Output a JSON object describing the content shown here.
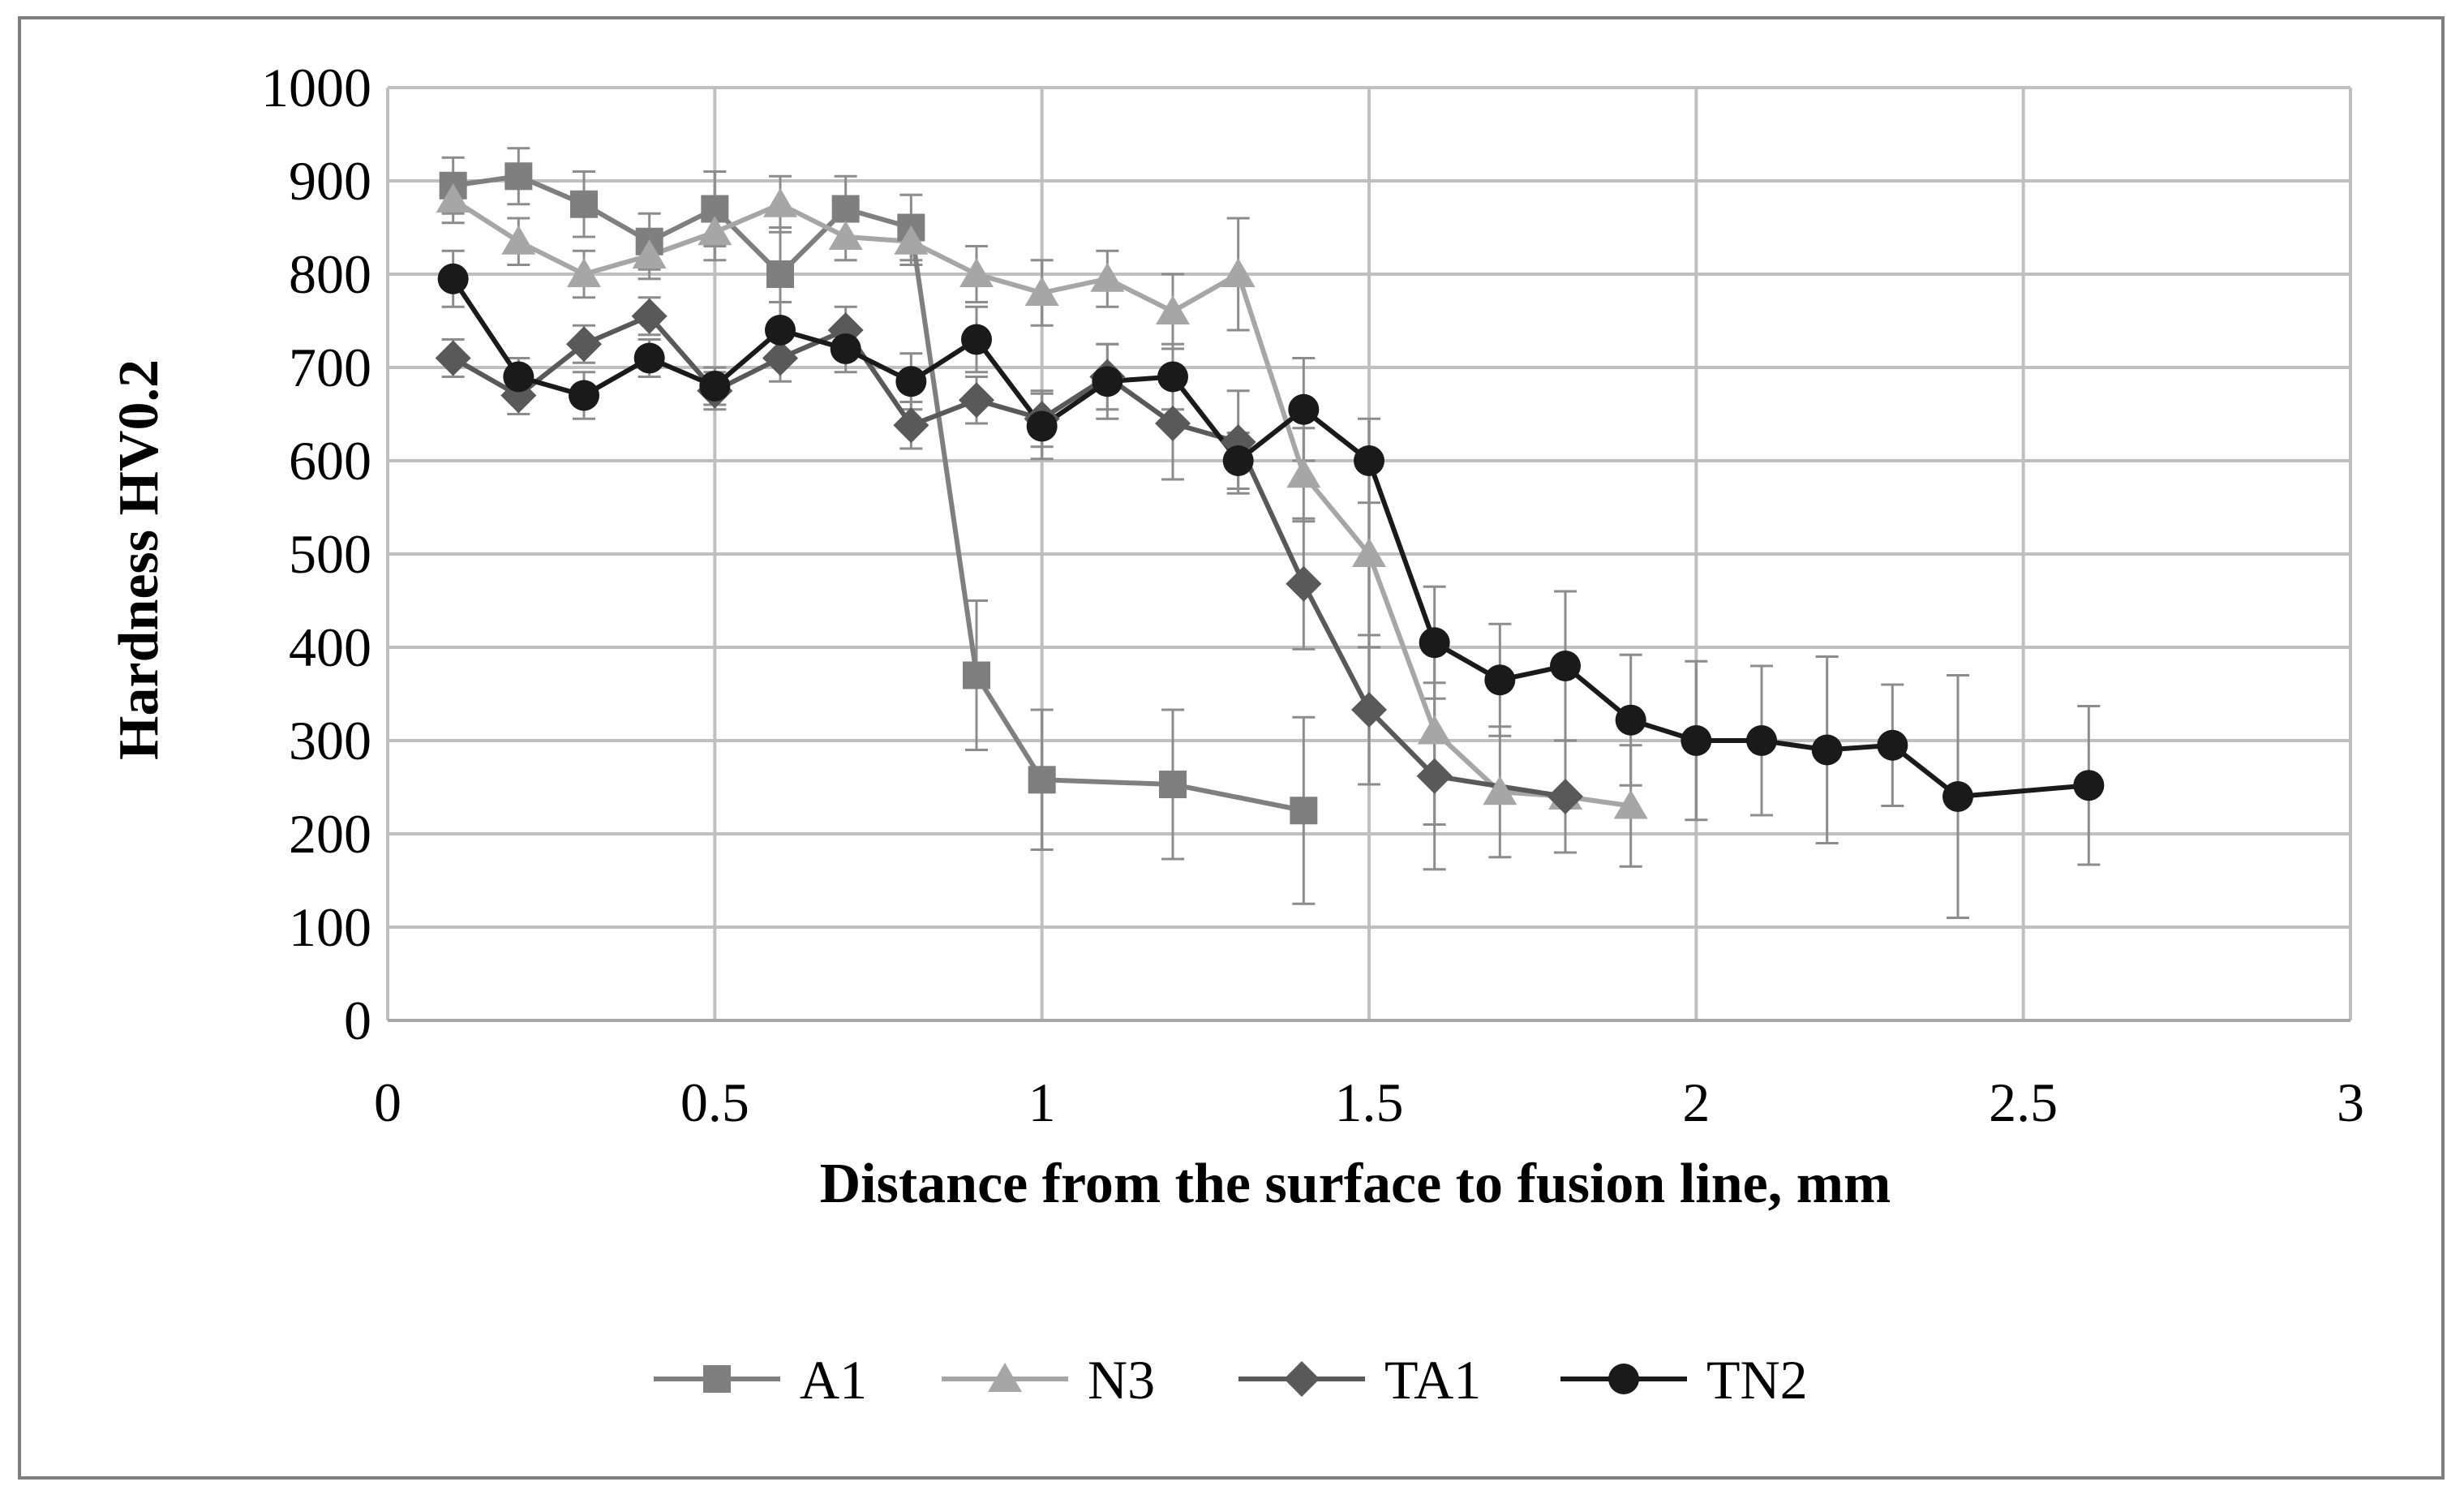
{
  "chart_data": {
    "type": "line",
    "title": "",
    "xlabel": "Distance from the surface to fusion line, mm",
    "ylabel": "Hardness HV0.2",
    "xlim": [
      0,
      3
    ],
    "ylim": [
      0,
      1000
    ],
    "xticks": [
      0,
      0.5,
      1,
      1.5,
      2,
      2.5,
      3
    ],
    "xtick_labels": [
      "0",
      "0.5",
      "1",
      "1.5",
      "2",
      "2.5",
      "3"
    ],
    "yticks": [
      0,
      100,
      200,
      300,
      400,
      500,
      600,
      700,
      800,
      900,
      1000
    ],
    "ytick_labels": [
      "0",
      "100",
      "200",
      "300",
      "400",
      "500",
      "600",
      "700",
      "800",
      "900",
      "1000"
    ],
    "grid": true,
    "legend_position": "bottom",
    "series": [
      {
        "name": "A1",
        "color": "#7f7f7f",
        "marker": "square",
        "x": [
          0.1,
          0.2,
          0.3,
          0.4,
          0.5,
          0.6,
          0.7,
          0.8,
          0.9,
          1.0,
          1.2,
          1.4
        ],
        "y": [
          895,
          905,
          875,
          835,
          870,
          800,
          870,
          850,
          370,
          258,
          253,
          225
        ],
        "err": [
          30,
          30,
          35,
          30,
          40,
          50,
          35,
          35,
          80,
          75,
          80,
          100
        ]
      },
      {
        "name": "N3",
        "color": "#a6a6a6",
        "marker": "triangle",
        "x": [
          0.1,
          0.2,
          0.3,
          0.4,
          0.5,
          0.6,
          0.7,
          0.8,
          0.9,
          1.0,
          1.1,
          1.2,
          1.3,
          1.4,
          1.5,
          1.6,
          1.7,
          1.8,
          1.9
        ],
        "y": [
          880,
          835,
          800,
          820,
          845,
          875,
          840,
          835,
          800,
          780,
          795,
          760,
          800,
          585,
          500,
          310,
          245,
          240,
          230
        ],
        "err": [
          25,
          25,
          25,
          25,
          30,
          30,
          25,
          25,
          30,
          35,
          30,
          40,
          60,
          50,
          100,
          100,
          70,
          60,
          65
        ]
      },
      {
        "name": "TA1",
        "color": "#595959",
        "marker": "diamond",
        "x": [
          0.1,
          0.2,
          0.3,
          0.4,
          0.5,
          0.6,
          0.7,
          0.8,
          0.9,
          1.0,
          1.1,
          1.2,
          1.3,
          1.4,
          1.5,
          1.6,
          1.8
        ],
        "y": [
          710,
          670,
          725,
          755,
          675,
          710,
          740,
          638,
          665,
          645,
          690,
          640,
          620,
          468,
          333,
          262,
          240
        ],
        "err": [
          20,
          20,
          20,
          20,
          20,
          25,
          25,
          25,
          25,
          30,
          35,
          60,
          55,
          70,
          80,
          100,
          60
        ]
      },
      {
        "name": "TN2",
        "color": "#1a1a1a",
        "marker": "circle",
        "x": [
          0.1,
          0.2,
          0.3,
          0.4,
          0.5,
          0.6,
          0.7,
          0.8,
          0.9,
          1.0,
          1.1,
          1.2,
          1.3,
          1.4,
          1.5,
          1.6,
          1.7,
          1.8,
          1.9,
          2.0,
          2.1,
          2.2,
          2.3,
          2.4,
          2.6
        ],
        "y": [
          795,
          690,
          670,
          710,
          680,
          740,
          720,
          685,
          730,
          637,
          685,
          690,
          600,
          655,
          600,
          405,
          365,
          380,
          322,
          300,
          300,
          290,
          295,
          240,
          252
        ],
        "err": [
          30,
          20,
          25,
          20,
          20,
          30,
          25,
          30,
          35,
          35,
          40,
          35,
          30,
          55,
          45,
          60,
          60,
          80,
          70,
          85,
          80,
          100,
          65,
          130,
          85
        ]
      }
    ]
  }
}
